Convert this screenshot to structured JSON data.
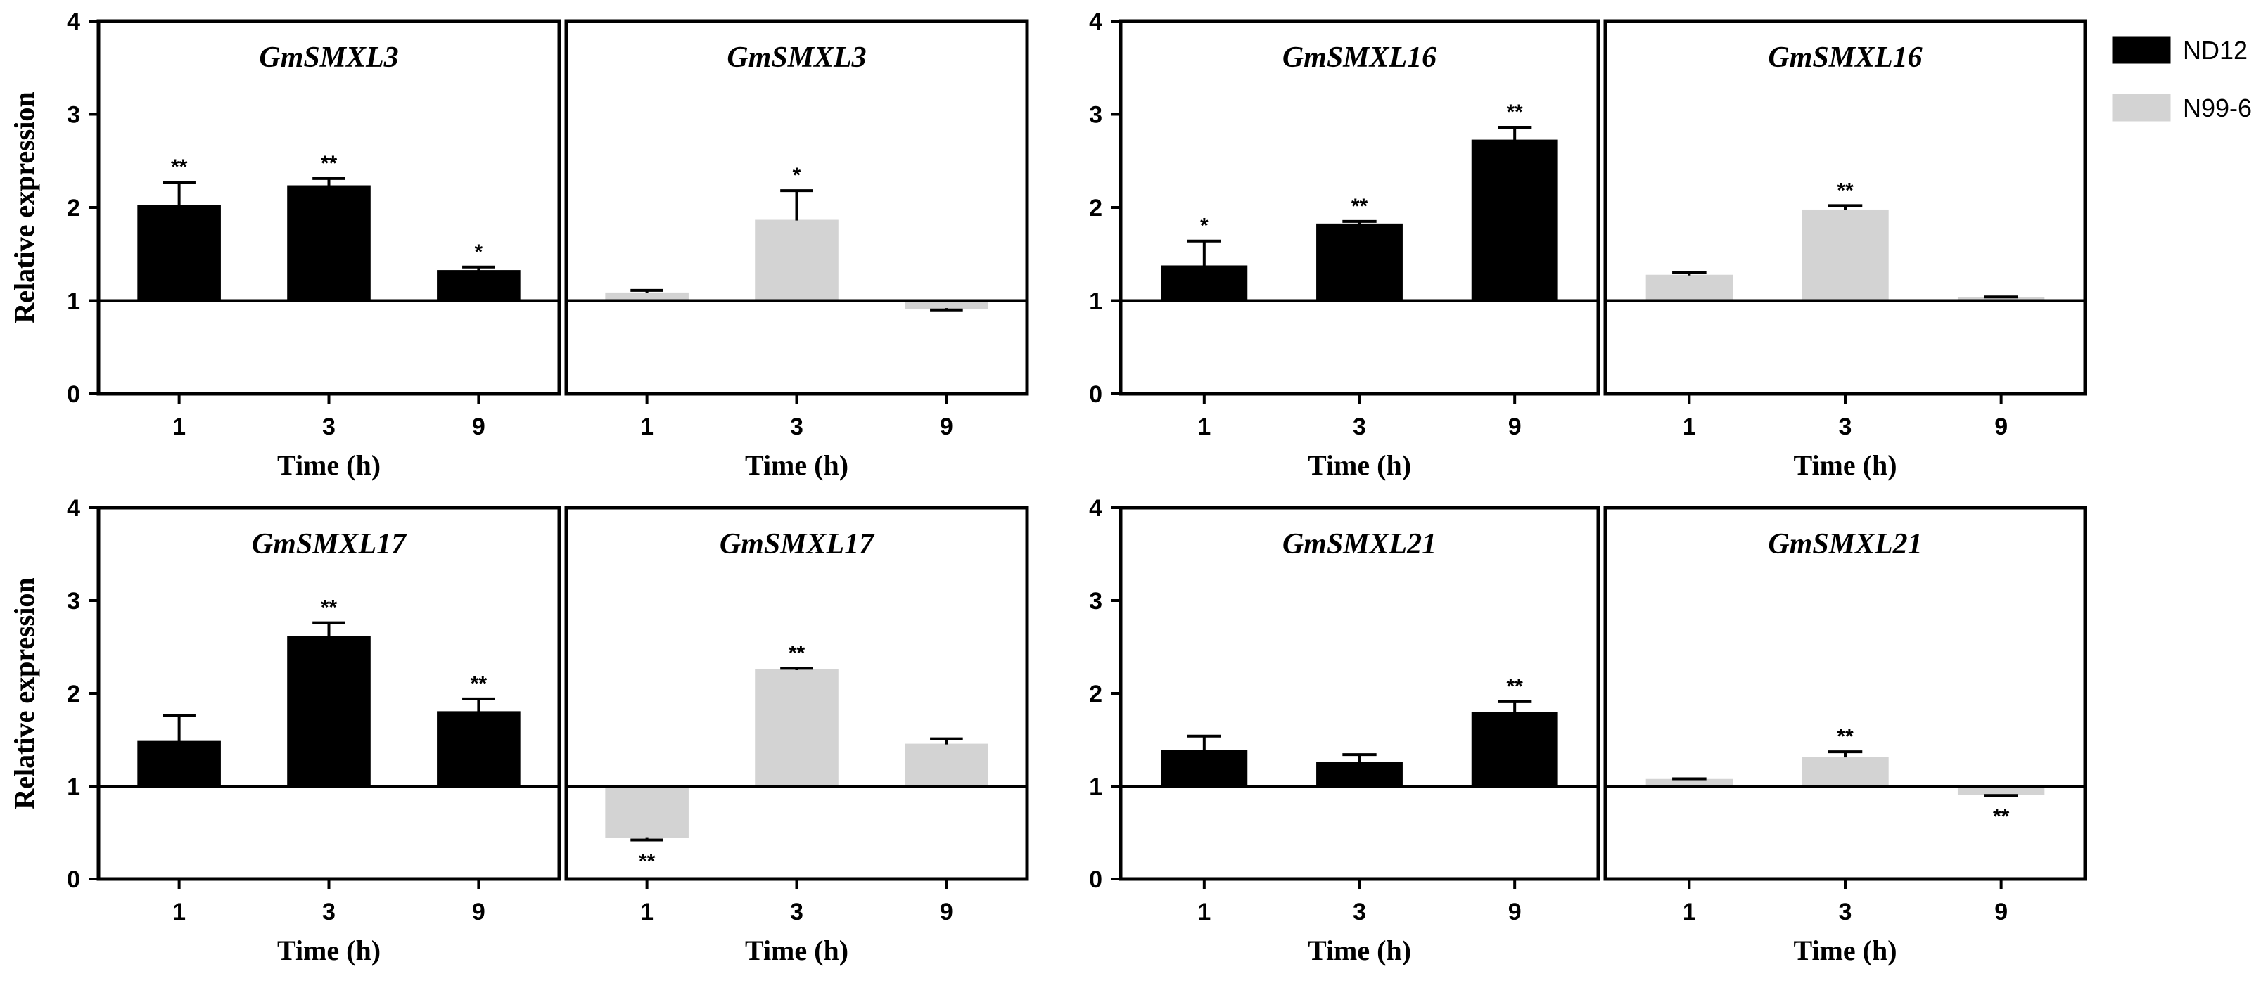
{
  "colors": {
    "ND12": "#000000",
    "N99-6": "#d3d3d3",
    "axis": "#000000"
  },
  "legend": [
    {
      "label": "ND12",
      "color": "#000000"
    },
    {
      "label": "N99-6",
      "color": "#d3d3d3"
    }
  ],
  "chart_data": [
    {
      "type": "bar",
      "title": "GmSMXL3",
      "series_name": "ND12",
      "xlabel": "Time (h)",
      "ylabel": "Relative expression",
      "categories": [
        "1",
        "3",
        "9"
      ],
      "values": [
        2.02,
        2.23,
        1.32
      ],
      "errors": [
        0.25,
        0.08,
        0.04
      ],
      "significance": [
        "**",
        "**",
        "*"
      ],
      "ylim": [
        0,
        4
      ],
      "yticks": [
        "0",
        "1",
        "2",
        "3",
        "4"
      ],
      "baseline": 1
    },
    {
      "type": "bar",
      "title": "GmSMXL3",
      "series_name": "N99-6",
      "xlabel": "Time (h)",
      "ylabel": "",
      "categories": [
        "1",
        "3",
        "9"
      ],
      "values": [
        1.08,
        1.86,
        0.92
      ],
      "errors": [
        0.03,
        0.32,
        0.02
      ],
      "significance": [
        "",
        "*",
        ""
      ],
      "ylim": [
        0,
        4
      ],
      "yticks": [],
      "baseline": 1
    },
    {
      "type": "bar",
      "title": "GmSMXL16",
      "series_name": "ND12",
      "xlabel": "Time (h)",
      "ylabel": "Relative expression",
      "categories": [
        "1",
        "3",
        "9"
      ],
      "values": [
        1.37,
        1.82,
        2.72
      ],
      "errors": [
        0.27,
        0.03,
        0.14
      ],
      "significance": [
        "*",
        "**",
        "**"
      ],
      "ylim": [
        0,
        4
      ],
      "yticks": [
        "0",
        "1",
        "2",
        "3",
        "4"
      ],
      "baseline": 1
    },
    {
      "type": "bar",
      "title": "GmSMXL16",
      "series_name": "N99-6",
      "xlabel": "Time (h)",
      "ylabel": "",
      "categories": [
        "1",
        "3",
        "9"
      ],
      "values": [
        1.27,
        1.97,
        1.03
      ],
      "errors": [
        0.03,
        0.05,
        0.01
      ],
      "significance": [
        "",
        "**",
        ""
      ],
      "ylim": [
        0,
        4
      ],
      "yticks": [],
      "baseline": 1
    },
    {
      "type": "bar",
      "title": "GmSMXL17",
      "series_name": "ND12",
      "xlabel": "Time (h)",
      "ylabel": "Relative expression",
      "categories": [
        "1",
        "3",
        "9"
      ],
      "values": [
        1.48,
        2.61,
        1.8
      ],
      "errors": [
        0.28,
        0.15,
        0.14
      ],
      "significance": [
        "",
        "**",
        "**"
      ],
      "ylim": [
        0,
        4
      ],
      "yticks": [
        "0",
        "1",
        "2",
        "3",
        "4"
      ],
      "baseline": 1
    },
    {
      "type": "bar",
      "title": "GmSMXL17",
      "series_name": "N99-6",
      "xlabel": "Time (h)",
      "ylabel": "",
      "categories": [
        "1",
        "3",
        "9"
      ],
      "values": [
        0.45,
        2.25,
        1.45
      ],
      "errors": [
        0.03,
        0.02,
        0.06
      ],
      "significance": [
        "**",
        "**",
        ""
      ],
      "ylim": [
        0,
        4
      ],
      "yticks": [],
      "baseline": 1
    },
    {
      "type": "bar",
      "title": "GmSMXL21",
      "series_name": "ND12",
      "xlabel": "Time (h)",
      "ylabel": "Relative expression",
      "categories": [
        "1",
        "3",
        "9"
      ],
      "values": [
        1.38,
        1.25,
        1.79
      ],
      "errors": [
        0.16,
        0.09,
        0.12
      ],
      "significance": [
        "",
        "",
        "**"
      ],
      "ylim": [
        0,
        4
      ],
      "yticks": [
        "0",
        "1",
        "2",
        "3",
        "4"
      ],
      "baseline": 1
    },
    {
      "type": "bar",
      "title": "GmSMXL21",
      "series_name": "N99-6",
      "xlabel": "Time (h)",
      "ylabel": "",
      "categories": [
        "1",
        "3",
        "9"
      ],
      "values": [
        1.07,
        1.31,
        0.91
      ],
      "errors": [
        0.01,
        0.06,
        0.01
      ],
      "significance": [
        "",
        "**",
        "**"
      ],
      "ylim": [
        0,
        4
      ],
      "yticks": [],
      "baseline": 1
    }
  ]
}
